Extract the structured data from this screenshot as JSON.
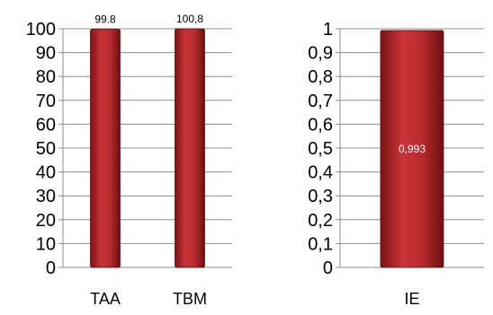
{
  "chart_data": [
    {
      "type": "bar",
      "title": "",
      "xlabel": "",
      "ylabel": "",
      "categories": [
        "TAA",
        "TBM"
      ],
      "values": [
        99.8,
        100.8
      ],
      "data_labels": [
        "99.8",
        "100,8"
      ],
      "ylim": [
        0,
        100
      ],
      "yticks": [
        0,
        10,
        20,
        30,
        40,
        50,
        60,
        70,
        80,
        90,
        100
      ],
      "ytick_labels": [
        "0",
        "10",
        "20",
        "30",
        "40",
        "50",
        "60",
        "70",
        "80",
        "90",
        "100"
      ],
      "grid": true,
      "legend": "none",
      "data_label_position": "inside-top",
      "bar_color": "#b3272b"
    },
    {
      "type": "bar",
      "title": "",
      "xlabel": "",
      "ylabel": "",
      "categories": [
        "IE"
      ],
      "values": [
        0.993
      ],
      "data_labels": [
        "0,993"
      ],
      "ylim": [
        0,
        1
      ],
      "yticks": [
        0,
        0.1,
        0.2,
        0.3,
        0.4,
        0.5,
        0.6,
        0.7,
        0.8,
        0.9,
        1
      ],
      "ytick_labels": [
        "0",
        "0,1",
        "0,2",
        "0,3",
        "0,4",
        "0,5",
        "0,6",
        "0,7",
        "0,8",
        "0,9",
        "1"
      ],
      "grid": true,
      "legend": "none",
      "data_label_position": "center",
      "bar_color": "#b3272b"
    }
  ]
}
